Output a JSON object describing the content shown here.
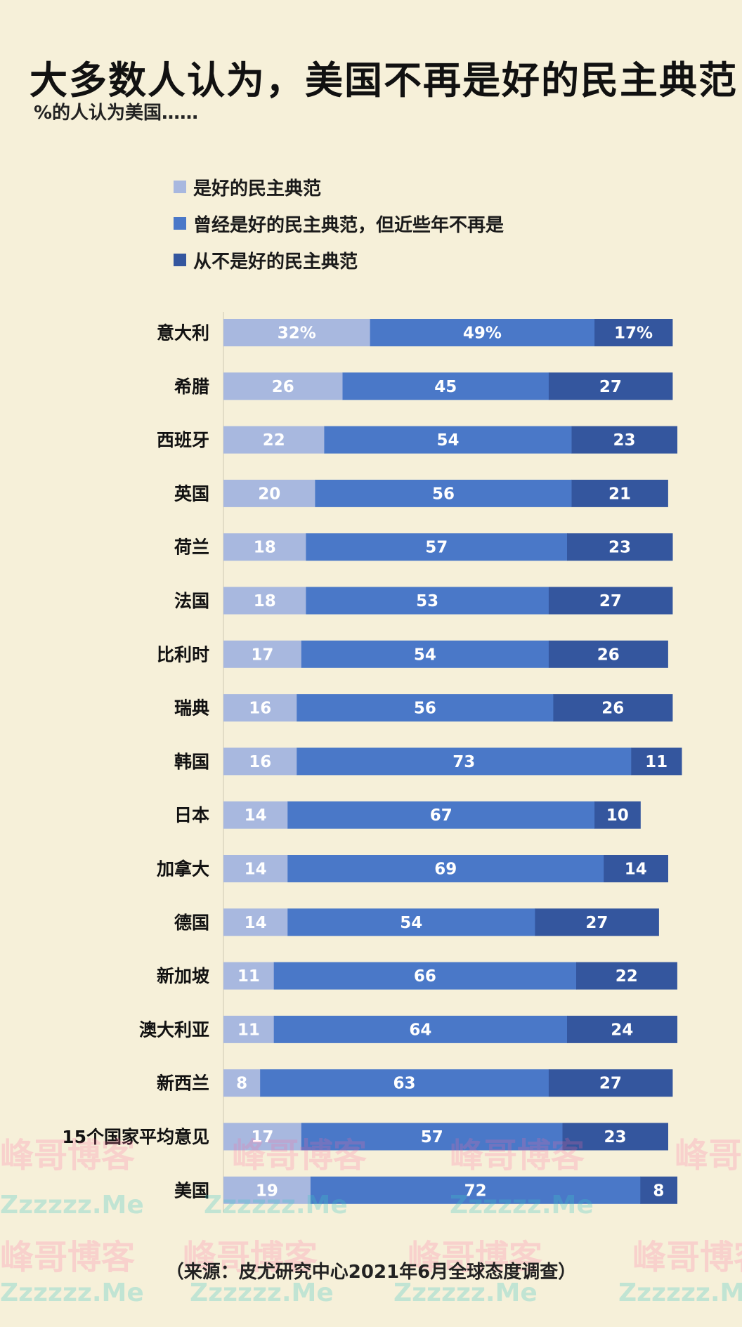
{
  "title": "大多数人认为，美国不再是好的民主典范",
  "subtitle": "%的人认为美国……",
  "legend": [
    {
      "label": "是好的民主典范",
      "color": "#a8b8df"
    },
    {
      "label": "曾经是好的民主典范，但近些年不再是",
      "color": "#4a78c8"
    },
    {
      "label": "从不是好的民主典范",
      "color": "#34569e"
    }
  ],
  "source": "（来源：皮尤研究中心2021年6月全球态度调查）",
  "watermarks": [
    "峰哥博客",
    "Zzzzzz.Me"
  ],
  "chart_data": {
    "type": "bar",
    "orientation": "horizontal",
    "stacked": true,
    "categories": [
      "意大利",
      "希腊",
      "西班牙",
      "英国",
      "荷兰",
      "法国",
      "比利时",
      "瑞典",
      "韩国",
      "日本",
      "加拿大",
      "德国",
      "新加坡",
      "澳大利亚",
      "新西兰",
      "15个国家平均意见",
      "美国"
    ],
    "series": [
      {
        "name": "是好的民主典范",
        "color": "#a8b8df",
        "values": [
          32,
          26,
          22,
          20,
          18,
          18,
          17,
          16,
          16,
          14,
          14,
          14,
          11,
          11,
          8,
          17,
          19
        ]
      },
      {
        "name": "曾经是好的民主典范，但近些年不再是",
        "color": "#4a78c8",
        "values": [
          49,
          45,
          54,
          56,
          57,
          53,
          54,
          56,
          73,
          67,
          69,
          54,
          66,
          64,
          63,
          57,
          72
        ]
      },
      {
        "name": "从不是好的民主典范",
        "color": "#34569e",
        "values": [
          17,
          27,
          23,
          21,
          23,
          27,
          26,
          26,
          11,
          10,
          14,
          27,
          22,
          24,
          27,
          23,
          8
        ]
      }
    ],
    "value_labels": [
      [
        "32%",
        "49%",
        "17%"
      ],
      [
        "26",
        "45",
        "27"
      ],
      [
        "22",
        "54",
        "23"
      ],
      [
        "20",
        "56",
        "21"
      ],
      [
        "18",
        "57",
        "23"
      ],
      [
        "18",
        "53",
        "27"
      ],
      [
        "17",
        "54",
        "26"
      ],
      [
        "16",
        "56",
        "26"
      ],
      [
        "16",
        "73",
        "11"
      ],
      [
        "14",
        "67",
        "10"
      ],
      [
        "14",
        "69",
        "14"
      ],
      [
        "14",
        "54",
        "27"
      ],
      [
        "11",
        "66",
        "22"
      ],
      [
        "11",
        "64",
        "24"
      ],
      [
        "8",
        "63",
        "27"
      ],
      [
        "17",
        "57",
        "23"
      ],
      [
        "19",
        "72",
        "8"
      ]
    ],
    "xlim": [
      0,
      100
    ],
    "grid": false,
    "legend_position": "top-left"
  }
}
